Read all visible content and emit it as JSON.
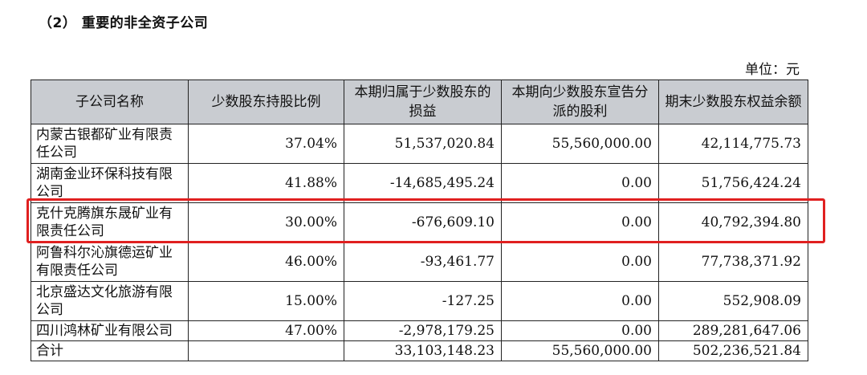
{
  "heading": "（2） 重要的非全资子公司",
  "unit_label": "单位：元",
  "table": {
    "headers": [
      "子公司名称",
      "少数股东持股比例",
      "本期归属于少数股东的损益",
      "本期向少数股东宣告分派的股利",
      "期末少数股东权益余额"
    ],
    "rows": [
      {
        "name": "内蒙古银都矿业有限责任公司",
        "ratio": "37.04%",
        "profit": "51,537,020.84",
        "dividend": "55,560,000.00",
        "equity": "42,114,775.73"
      },
      {
        "name": "湖南金业环保科技有限公司",
        "ratio": "41.88%",
        "profit": "-14,685,495.24",
        "dividend": "0.00",
        "equity": "51,756,424.24"
      },
      {
        "name": "克什克腾旗东晟矿业有限责任公司",
        "ratio": "30.00%",
        "profit": "-676,609.10",
        "dividend": "0.00",
        "equity": "40,792,394.80"
      },
      {
        "name": "阿鲁科尔沁旗德运矿业有限责任公司",
        "ratio": "46.00%",
        "profit": "-93,461.77",
        "dividend": "0.00",
        "equity": "77,738,371.92"
      },
      {
        "name": "北京盛达文化旅游有限公司",
        "ratio": "15.00%",
        "profit": "-127.25",
        "dividend": "0.00",
        "equity": "552,908.09"
      },
      {
        "name": "四川鸿林矿业有限公司",
        "ratio": "47.00%",
        "profit": "-2,978,179.25",
        "dividend": "0.00",
        "equity": "289,281,647.06"
      }
    ],
    "total": {
      "name": "合计",
      "ratio": "",
      "profit": "33,103,148.23",
      "dividend": "55,560,000.00",
      "equity": "502,236,521.84"
    }
  },
  "highlight_color": "#e02020"
}
